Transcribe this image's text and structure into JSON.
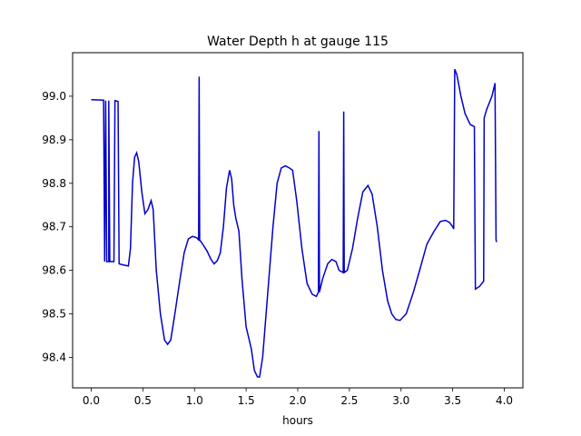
{
  "chart_data": {
    "type": "line",
    "title": "Water Depth h at gauge 115",
    "xlabel": "hours",
    "ylabel": "",
    "xlim": [
      -0.18,
      4.18
    ],
    "ylim": [
      98.33,
      99.1
    ],
    "xticks": [
      0.0,
      0.5,
      1.0,
      1.5,
      2.0,
      2.5,
      3.0,
      3.5,
      4.0
    ],
    "xtick_labels": [
      "0.0",
      "0.5",
      "1.0",
      "1.5",
      "2.0",
      "2.5",
      "3.0",
      "3.5",
      "4.0"
    ],
    "yticks": [
      98.4,
      98.5,
      98.6,
      98.7,
      98.8,
      98.9,
      99.0
    ],
    "ytick_labels": [
      "98.4",
      "98.5",
      "98.6",
      "98.7",
      "98.8",
      "98.9",
      "99.0"
    ],
    "grid": false,
    "colors": {
      "line": "#0000cc"
    },
    "series": [
      {
        "values": [
          [
            0.0,
            98.992
          ],
          [
            0.12,
            98.991
          ],
          [
            0.13,
            98.62
          ],
          [
            0.14,
            98.99
          ],
          [
            0.15,
            98.62
          ],
          [
            0.17,
            98.62
          ],
          [
            0.17,
            98.99
          ],
          [
            0.18,
            98.62
          ],
          [
            0.22,
            98.62
          ],
          [
            0.23,
            98.99
          ],
          [
            0.26,
            98.988
          ],
          [
            0.27,
            98.615
          ],
          [
            0.3,
            98.613
          ],
          [
            0.36,
            98.61
          ],
          [
            0.38,
            98.65
          ],
          [
            0.4,
            98.8
          ],
          [
            0.42,
            98.86
          ],
          [
            0.44,
            98.87
          ],
          [
            0.46,
            98.85
          ],
          [
            0.49,
            98.78
          ],
          [
            0.52,
            98.73
          ],
          [
            0.55,
            98.74
          ],
          [
            0.58,
            98.76
          ],
          [
            0.6,
            98.74
          ],
          [
            0.63,
            98.6
          ],
          [
            0.67,
            98.5
          ],
          [
            0.71,
            98.44
          ],
          [
            0.74,
            98.43
          ],
          [
            0.77,
            98.44
          ],
          [
            0.81,
            98.5
          ],
          [
            0.86,
            98.58
          ],
          [
            0.9,
            98.64
          ],
          [
            0.94,
            98.672
          ],
          [
            0.98,
            98.678
          ],
          [
            1.02,
            98.675
          ],
          [
            1.04,
            98.67
          ],
          [
            1.045,
            99.045
          ],
          [
            1.05,
            98.67
          ],
          [
            1.08,
            98.66
          ],
          [
            1.12,
            98.645
          ],
          [
            1.16,
            98.625
          ],
          [
            1.19,
            98.615
          ],
          [
            1.22,
            98.622
          ],
          [
            1.25,
            98.64
          ],
          [
            1.28,
            98.7
          ],
          [
            1.31,
            98.79
          ],
          [
            1.34,
            98.83
          ],
          [
            1.36,
            98.81
          ],
          [
            1.38,
            98.75
          ],
          [
            1.4,
            98.72
          ],
          [
            1.43,
            98.69
          ],
          [
            1.46,
            98.58
          ],
          [
            1.5,
            98.47
          ],
          [
            1.55,
            98.42
          ],
          [
            1.58,
            98.37
          ],
          [
            1.61,
            98.355
          ],
          [
            1.63,
            98.355
          ],
          [
            1.66,
            98.4
          ],
          [
            1.71,
            98.55
          ],
          [
            1.76,
            98.7
          ],
          [
            1.8,
            98.8
          ],
          [
            1.84,
            98.835
          ],
          [
            1.88,
            98.84
          ],
          [
            1.92,
            98.835
          ],
          [
            1.95,
            98.83
          ],
          [
            1.99,
            98.76
          ],
          [
            2.04,
            98.65
          ],
          [
            2.09,
            98.57
          ],
          [
            2.14,
            98.545
          ],
          [
            2.18,
            98.54
          ],
          [
            2.2,
            98.55
          ],
          [
            2.205,
            98.92
          ],
          [
            2.21,
            98.55
          ],
          [
            2.24,
            98.58
          ],
          [
            2.29,
            98.615
          ],
          [
            2.33,
            98.625
          ],
          [
            2.37,
            98.62
          ],
          [
            2.4,
            98.6
          ],
          [
            2.44,
            98.595
          ],
          [
            2.445,
            98.965
          ],
          [
            2.45,
            98.595
          ],
          [
            2.48,
            98.6
          ],
          [
            2.53,
            98.65
          ],
          [
            2.58,
            98.72
          ],
          [
            2.63,
            98.78
          ],
          [
            2.68,
            98.795
          ],
          [
            2.72,
            98.775
          ],
          [
            2.77,
            98.7
          ],
          [
            2.82,
            98.6
          ],
          [
            2.87,
            98.53
          ],
          [
            2.91,
            98.5
          ],
          [
            2.95,
            98.487
          ],
          [
            2.99,
            98.485
          ],
          [
            3.05,
            98.5
          ],
          [
            3.12,
            98.55
          ],
          [
            3.18,
            98.6
          ],
          [
            3.25,
            98.66
          ],
          [
            3.32,
            98.69
          ],
          [
            3.38,
            98.712
          ],
          [
            3.43,
            98.715
          ],
          [
            3.47,
            98.71
          ],
          [
            3.5,
            98.7
          ],
          [
            3.51,
            98.695
          ],
          [
            3.52,
            99.062
          ],
          [
            3.54,
            99.05
          ],
          [
            3.58,
            99.0
          ],
          [
            3.62,
            98.96
          ],
          [
            3.67,
            98.935
          ],
          [
            3.71,
            98.93
          ],
          [
            3.72,
            98.557
          ],
          [
            3.76,
            98.563
          ],
          [
            3.8,
            98.575
          ],
          [
            3.805,
            98.95
          ],
          [
            3.83,
            98.97
          ],
          [
            3.88,
            99.0
          ],
          [
            3.91,
            99.03
          ],
          [
            3.92,
            98.67
          ],
          [
            3.925,
            98.665
          ]
        ]
      }
    ]
  }
}
